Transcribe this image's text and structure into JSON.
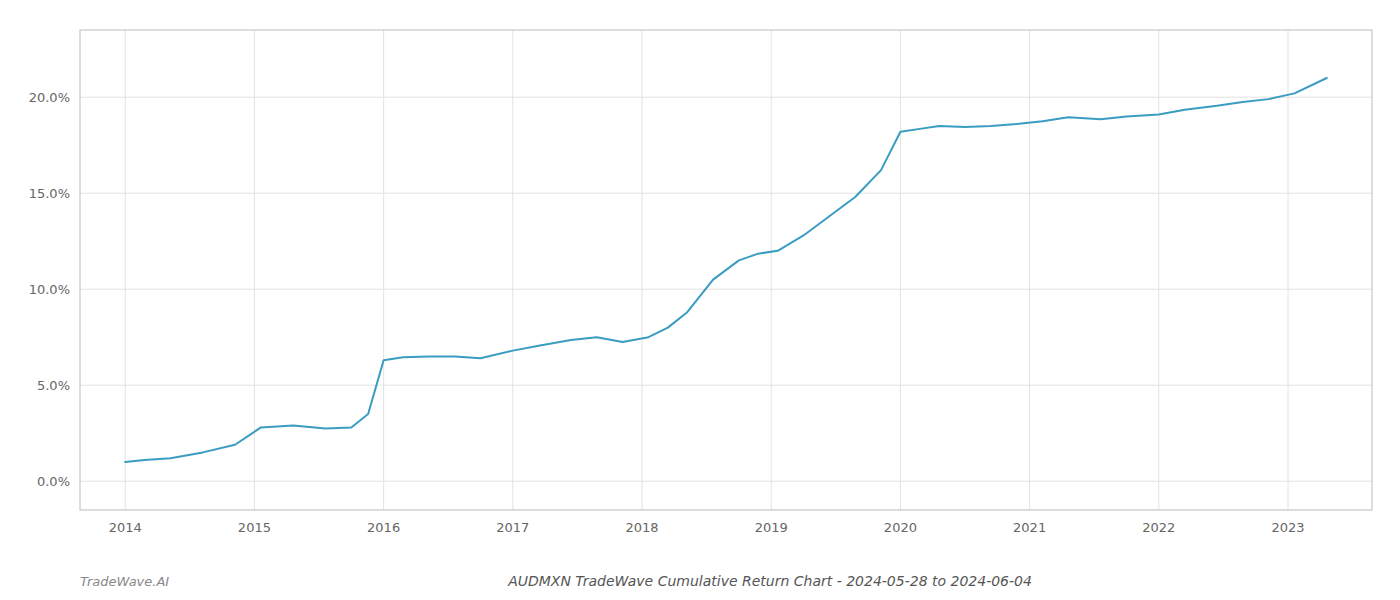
{
  "chart_data": {
    "type": "line",
    "title": "AUDMXN TradeWave Cumulative Return Chart - 2024-05-28 to 2024-06-04",
    "annotations": [
      "TradeWave.AI"
    ],
    "color": "#3a9cc0",
    "grid": true,
    "x": [
      2014.0,
      2014.15,
      2014.35,
      2014.6,
      2014.85,
      2015.05,
      2015.3,
      2015.55,
      2015.75,
      2015.88,
      2016.0,
      2016.15,
      2016.35,
      2016.55,
      2016.75,
      2017.0,
      2017.2,
      2017.45,
      2017.65,
      2017.85,
      2018.05,
      2018.2,
      2018.35,
      2018.55,
      2018.75,
      2018.9,
      2019.05,
      2019.25,
      2019.45,
      2019.65,
      2019.85,
      2020.0,
      2020.15,
      2020.3,
      2020.5,
      2020.7,
      2020.9,
      2021.1,
      2021.3,
      2021.55,
      2021.75,
      2022.0,
      2022.2,
      2022.45,
      2022.65,
      2022.85,
      2023.05,
      2023.3
    ],
    "values": [
      1.0,
      1.1,
      1.2,
      1.5,
      1.9,
      2.8,
      2.9,
      2.75,
      2.8,
      3.5,
      6.3,
      6.45,
      6.5,
      6.5,
      6.4,
      6.8,
      7.05,
      7.35,
      7.5,
      7.25,
      7.5,
      8.0,
      8.8,
      10.5,
      11.5,
      11.85,
      12.0,
      12.8,
      13.8,
      14.8,
      16.2,
      18.2,
      18.35,
      18.5,
      18.45,
      18.5,
      18.6,
      18.75,
      18.95,
      18.85,
      19.0,
      19.1,
      19.35,
      19.55,
      19.75,
      19.9,
      20.2,
      21.0
    ],
    "xlim": [
      2013.65,
      2023.65
    ],
    "ylim": [
      -1.5,
      23.5
    ],
    "xticks": [
      2014,
      2015,
      2016,
      2017,
      2018,
      2019,
      2020,
      2021,
      2022,
      2023
    ],
    "yticks": [
      {
        "value": 0.0,
        "label": "0.0%"
      },
      {
        "value": 5.0,
        "label": "5.0%"
      },
      {
        "value": 10.0,
        "label": "10.0%"
      },
      {
        "value": 15.0,
        "label": "15.0%"
      },
      {
        "value": 20.0,
        "label": "20.0%"
      }
    ]
  }
}
